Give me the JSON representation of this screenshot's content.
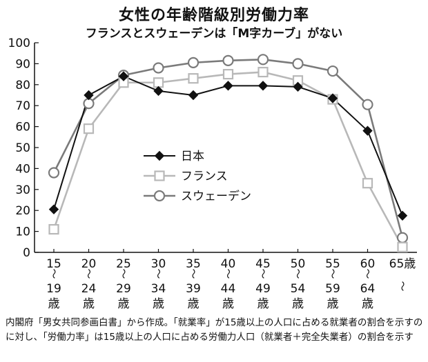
{
  "title": "女性の年齢階級別労働力率",
  "subtitle": "フランスとスウェーデンは「M字カーブ」がない",
  "note": "内閣府「男女共同参画白書」から作成。「就業率」が15歳以上の人口に占める就業者の割合を示すのに対し、「労働力率」は15歳以上の人口に占める労働力人口（就業者＋完全失業者）の割合を示す",
  "chart_data": {
    "type": "line",
    "title": "女性の年齢階級別労働力率",
    "subtitle": "フランスとスウェーデンは「M字カーブ」がない",
    "categories": [
      {
        "top": "15",
        "bottom": [
          "19",
          "歳"
        ]
      },
      {
        "top": "20",
        "bottom": [
          "24",
          "歳"
        ]
      },
      {
        "top": "25",
        "bottom": [
          "29",
          "歳"
        ]
      },
      {
        "top": "30",
        "bottom": [
          "34",
          "歳"
        ]
      },
      {
        "top": "35",
        "bottom": [
          "39",
          "歳"
        ]
      },
      {
        "top": "40",
        "bottom": [
          "44",
          "歳"
        ]
      },
      {
        "top": "45",
        "bottom": [
          "49",
          "歳"
        ]
      },
      {
        "top": "50",
        "bottom": [
          "54",
          "歳"
        ]
      },
      {
        "top": "55",
        "bottom": [
          "59",
          "歳"
        ]
      },
      {
        "top": "60",
        "bottom": [
          "64",
          "歳"
        ]
      },
      {
        "top": "65歳",
        "bottom": []
      }
    ],
    "series": [
      {
        "name": "日本",
        "marker": "diamond",
        "color": "#111111",
        "values": [
          20.5,
          75,
          84,
          77,
          75,
          79.5,
          79.5,
          79,
          73.5,
          58,
          17.5
        ]
      },
      {
        "name": "フランス",
        "marker": "square",
        "color": "#b8b8b8",
        "values": [
          11,
          59,
          81,
          81,
          83,
          85,
          86,
          82,
          73,
          33,
          2.5
        ]
      },
      {
        "name": "スウェーデン",
        "marker": "circle",
        "color": "#7a7a7a",
        "values": [
          38,
          71,
          84.5,
          88,
          90.5,
          91.5,
          92,
          90,
          86.5,
          70.5,
          7
        ]
      }
    ],
    "ylim": [
      0,
      100
    ],
    "yticks": [
      0,
      10,
      20,
      30,
      40,
      50,
      60,
      70,
      80,
      90,
      100
    ],
    "xlabel": "",
    "ylabel": "",
    "legend": "center",
    "grid": false
  }
}
